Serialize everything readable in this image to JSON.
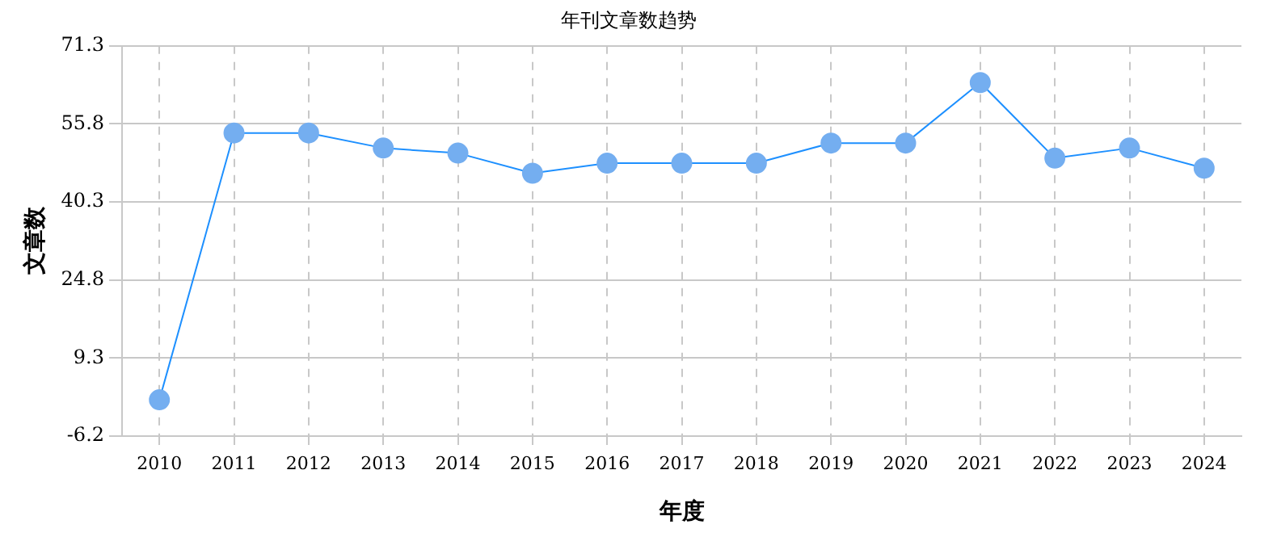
{
  "chart_data": {
    "type": "line",
    "title": "年刊文章数趋势",
    "xlabel": "年度",
    "ylabel": "文章数",
    "categories": [
      "2010",
      "2011",
      "2012",
      "2013",
      "2014",
      "2015",
      "2016",
      "2017",
      "2018",
      "2019",
      "2020",
      "2021",
      "2022",
      "2023",
      "2024"
    ],
    "series": [
      {
        "color": "#1e90ff",
        "values": [
          1,
          54,
          54,
          51,
          50,
          46,
          48,
          48,
          48,
          52,
          52,
          64,
          49,
          51,
          47
        ]
      }
    ],
    "ylim": [
      -6.2,
      71.3
    ],
    "yticks": [
      -6.2,
      9.3,
      24.8,
      40.3,
      55.8,
      71.3
    ],
    "grid": true,
    "marker": "circle",
    "legend": false
  }
}
